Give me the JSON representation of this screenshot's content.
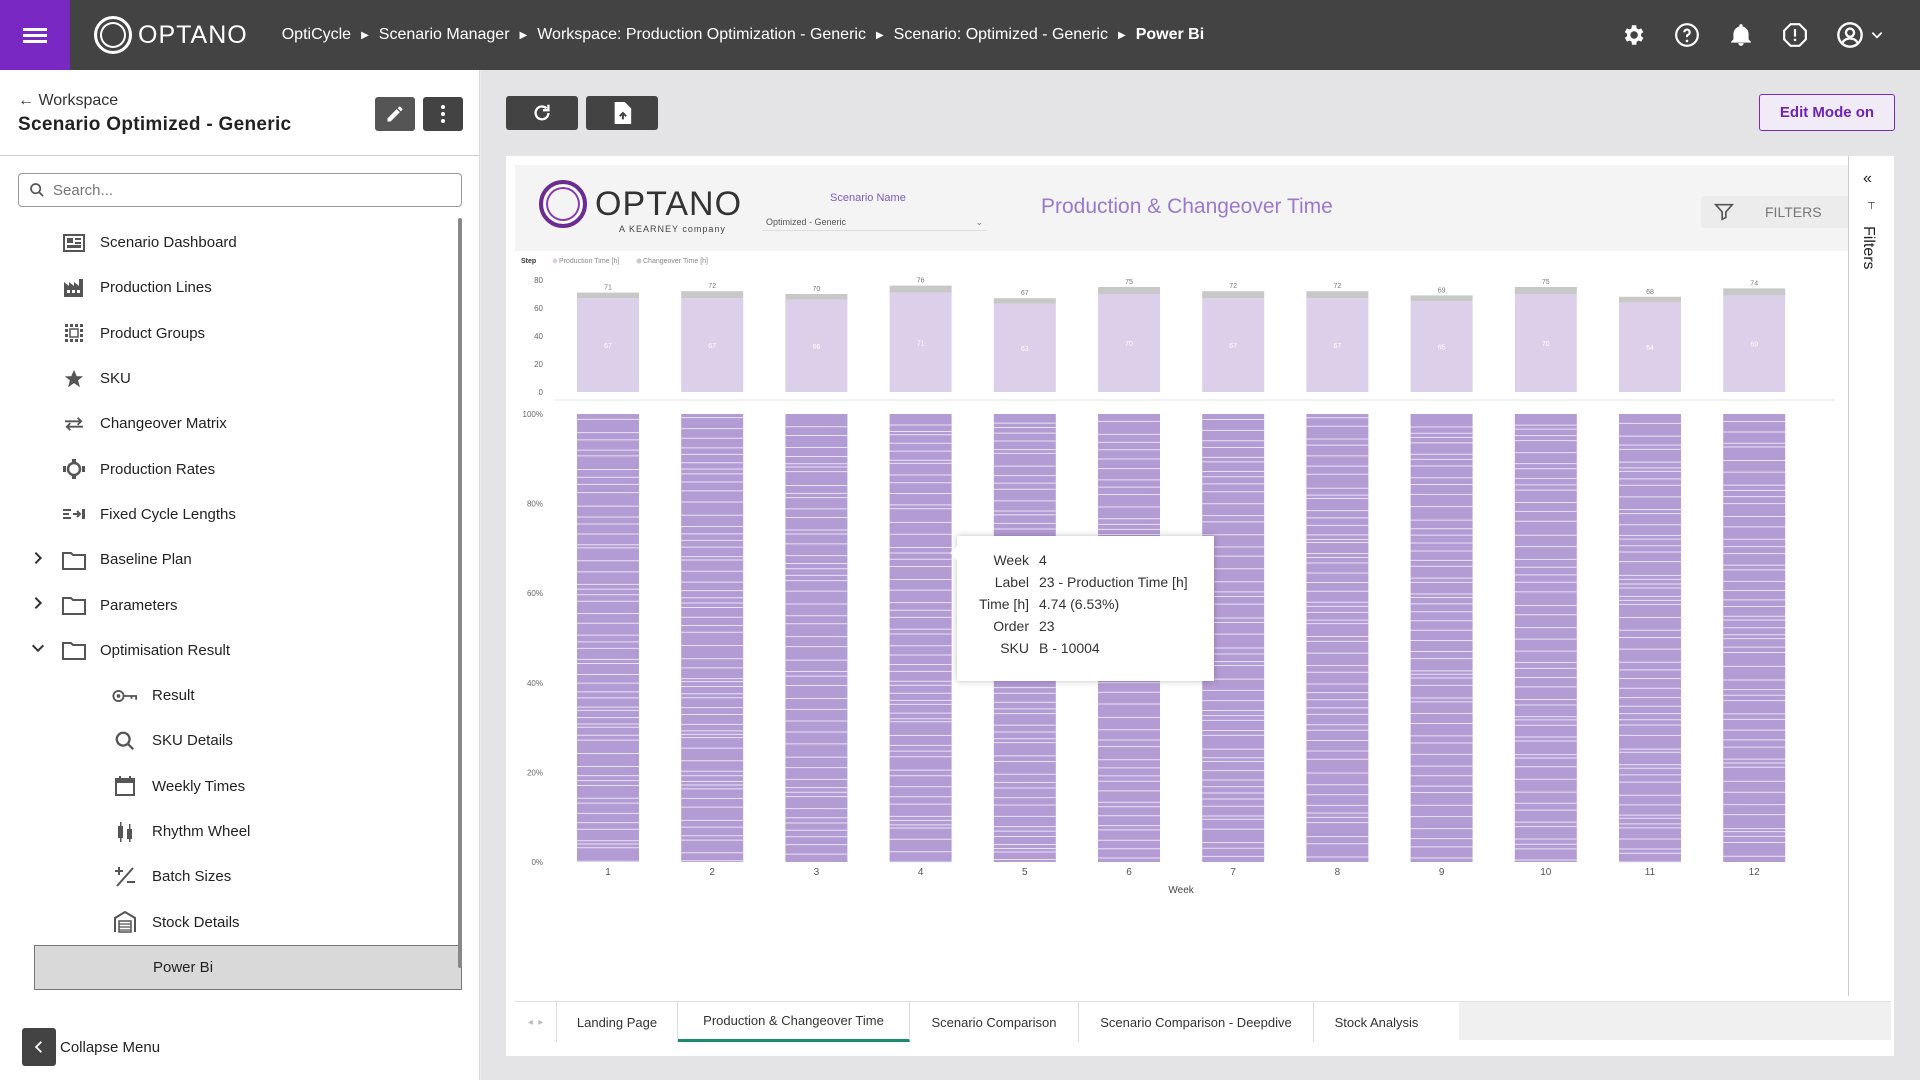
{
  "topbar": {
    "logo_text": "OPTANO",
    "breadcrumbs": [
      "OptiCycle",
      "Scenario Manager",
      "Workspace: Production Optimization - Generic",
      "Scenario: Optimized - Generic",
      "Power Bi"
    ],
    "icons": [
      "gear-icon",
      "help-icon",
      "bell-icon",
      "alert-icon",
      "account-icon"
    ]
  },
  "sidebar": {
    "back_label": "Workspace",
    "scenario_title": "Scenario Optimized - Generic",
    "search_placeholder": "Search...",
    "items": [
      {
        "label": "Scenario Dashboard",
        "icon": "dashboard-icon",
        "level": 0
      },
      {
        "label": "Production Lines",
        "icon": "factory-icon",
        "level": 0
      },
      {
        "label": "Product Groups",
        "icon": "grid-icon",
        "level": 0
      },
      {
        "label": "SKU",
        "icon": "star-icon",
        "level": 0
      },
      {
        "label": "Changeover Matrix",
        "icon": "swap-icon",
        "level": 0
      },
      {
        "label": "Production Rates",
        "icon": "gauge-icon",
        "level": 0
      },
      {
        "label": "Fixed Cycle Lengths",
        "icon": "cycle-length-icon",
        "level": 0
      },
      {
        "label": "Baseline Plan",
        "icon": "folder-icon",
        "level": 0,
        "expander": "collapsed"
      },
      {
        "label": "Parameters",
        "icon": "folder-icon",
        "level": 0,
        "expander": "collapsed"
      },
      {
        "label": "Optimisation Result",
        "icon": "folder-icon",
        "level": 0,
        "expander": "expanded"
      },
      {
        "label": "Result",
        "icon": "key-icon",
        "level": 1
      },
      {
        "label": "SKU Details",
        "icon": "search-icon",
        "level": 1
      },
      {
        "label": "Weekly Times",
        "icon": "calendar-icon",
        "level": 1
      },
      {
        "label": "Rhythm Wheel",
        "icon": "candlestick-icon",
        "level": 1
      },
      {
        "label": "Batch Sizes",
        "icon": "plus-minus-icon",
        "level": 1
      },
      {
        "label": "Stock Details",
        "icon": "warehouse-icon",
        "level": 1
      },
      {
        "label": "Power Bi",
        "icon": "",
        "level": 1,
        "active": true
      }
    ],
    "collapse_label": "Collapse Menu"
  },
  "toolbar": {
    "edit_mode_label": "Edit Mode on"
  },
  "report": {
    "logo_text": "OPTANO",
    "logo_sub": "A KEARNEY company",
    "scenario_name_label": "Scenario Name",
    "scenario_name_value": "Optimized - Generic",
    "title": "Production & Changeover Time",
    "filters_label": "FILTERS",
    "filters_pane_label": "Filters",
    "accent": "#9a79cc",
    "tabs": [
      "Landing Page",
      "Production & Changeover Time",
      "Scenario Comparison",
      "Scenario Comparison - Deepdive",
      "Stock Analysis"
    ],
    "selected_tab": 1
  },
  "chart_data": [
    {
      "type": "bar",
      "stacked": true,
      "legend_title": "Step",
      "legend": [
        "Production Time [h]",
        "Changeover Time [h]"
      ],
      "colors": {
        "production": "#dccfea",
        "changeover": "#c8c8c8"
      },
      "categories": [
        "1",
        "2",
        "3",
        "4",
        "5",
        "6",
        "7",
        "8",
        "9",
        "10",
        "11",
        "12"
      ],
      "series": [
        {
          "name": "Production Time [h]",
          "values": [
            67,
            67,
            66,
            71,
            63,
            70,
            67,
            67,
            65,
            70,
            64,
            69
          ]
        },
        {
          "name": "Changeover Time [h]",
          "values": [
            4,
            5,
            4,
            5,
            4,
            5,
            5,
            5,
            4,
            5,
            4,
            5
          ]
        }
      ],
      "totals": [
        71,
        72,
        70,
        76,
        67,
        75,
        72,
        72,
        69,
        75,
        68,
        74
      ],
      "yticks": [
        "0",
        "20",
        "40",
        "60",
        "80"
      ],
      "ylim": [
        0,
        80
      ]
    },
    {
      "type": "bar",
      "stacked": true,
      "normalized": true,
      "color": "#b39bd3",
      "categories": [
        "1",
        "2",
        "3",
        "4",
        "5",
        "6",
        "7",
        "8",
        "9",
        "10",
        "11",
        "12"
      ],
      "xlabel": "Week",
      "yticks": [
        "0%",
        "20%",
        "40%",
        "60%",
        "80%",
        "100%"
      ],
      "ylim": [
        0,
        100
      ]
    }
  ],
  "tooltip": {
    "rows": [
      {
        "key": "Week",
        "value": "4"
      },
      {
        "key": "Label",
        "value": "23 - Production Time [h]"
      },
      {
        "key": "Time [h]",
        "value": "4.74 (6.53%)"
      },
      {
        "key": "Order",
        "value": "23"
      },
      {
        "key": "SKU",
        "value": "B - 10004"
      }
    ]
  }
}
